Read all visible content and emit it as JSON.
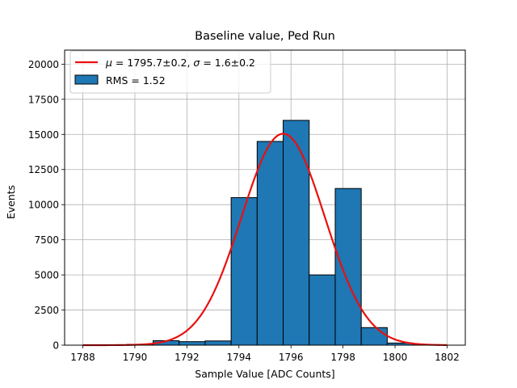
{
  "chart_data": {
    "type": "bar",
    "title": "Baseline value, Ped Run",
    "xlabel": "Sample Value [ADC Counts]",
    "ylabel": "Events",
    "xlim": [
      1787.3,
      1802.7
    ],
    "ylim": [
      0,
      21000
    ],
    "xticks": [
      1788,
      1790,
      1792,
      1794,
      1796,
      1798,
      1800,
      1802
    ],
    "yticks": [
      0,
      2500,
      5000,
      7500,
      10000,
      12500,
      15000,
      17500,
      20000
    ],
    "grid": true,
    "legend_position": "upper left",
    "histogram": {
      "name": "RMS = 1.52",
      "color": "#1f77b4",
      "edge_color": "#000000",
      "bins": [
        {
          "x0": 1788.0,
          "x1": 1789.0,
          "count": 0
        },
        {
          "x0": 1789.0,
          "x1": 1789.7,
          "count": 20
        },
        {
          "x0": 1789.7,
          "x1": 1790.7,
          "count": 60
        },
        {
          "x0": 1790.7,
          "x1": 1791.7,
          "count": 320
        },
        {
          "x0": 1791.7,
          "x1": 1792.7,
          "count": 250
        },
        {
          "x0": 1792.7,
          "x1": 1793.7,
          "count": 300
        },
        {
          "x0": 1793.7,
          "x1": 1794.7,
          "count": 10500
        },
        {
          "x0": 1794.7,
          "x1": 1795.7,
          "count": 14500
        },
        {
          "x0": 1795.7,
          "x1": 1796.7,
          "count": 16000
        },
        {
          "x0": 1796.7,
          "x1": 1797.7,
          "count": 5000
        },
        {
          "x0": 1797.7,
          "x1": 1798.7,
          "count": 11150
        },
        {
          "x0": 1798.7,
          "x1": 1799.7,
          "count": 1250
        },
        {
          "x0": 1799.7,
          "x1": 1800.7,
          "count": 150
        },
        {
          "x0": 1800.7,
          "x1": 1801.7,
          "count": 20
        }
      ]
    },
    "fit": {
      "name": "$\\mu = 1795.7\\pm0.2$, $\\sigma = 1.6\\pm0.2$",
      "label_parts": {
        "mu_symbol": "μ",
        "mu_rest": " = 1795.7±0.2, ",
        "sigma_symbol": "σ",
        "sigma_rest": " = 1.6±0.2"
      },
      "type": "gaussian",
      "mu": 1795.7,
      "sigma": 1.6,
      "amplitude": 15050,
      "x_range": [
        1788,
        1802
      ],
      "color": "#e8110f"
    }
  }
}
